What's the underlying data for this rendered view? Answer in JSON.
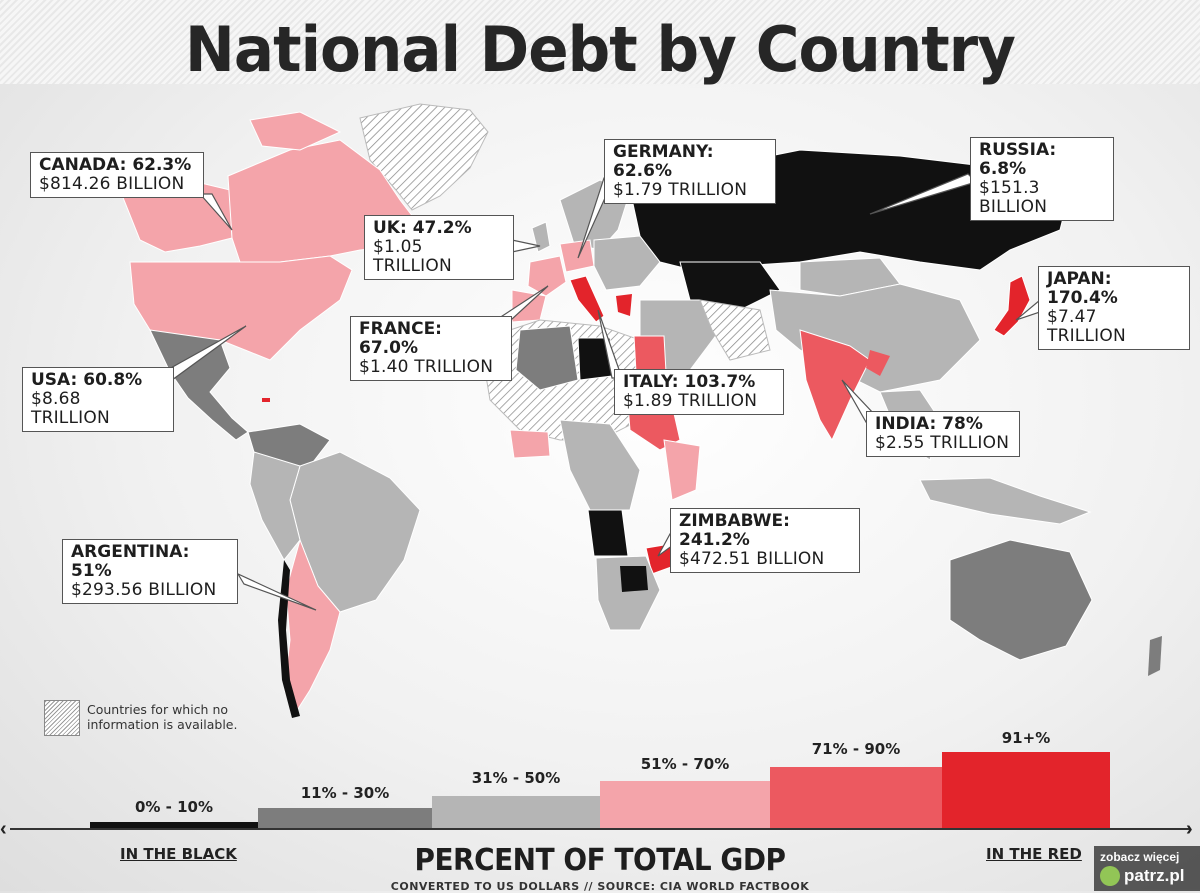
{
  "title": "National Debt by Country",
  "callouts": [
    {
      "id": "canada",
      "name": "CANADA: 62.3%",
      "amount": "$814.26 BILLION",
      "color": "#f4a4aa"
    },
    {
      "id": "uk",
      "name": "UK: 47.2%",
      "amount": "$1.05 TRILLION",
      "color": "#bdbdbd"
    },
    {
      "id": "germany",
      "name": "GERMANY: 62.6%",
      "amount": "$1.79 TRILLION",
      "color": "#f4a4aa"
    },
    {
      "id": "russia",
      "name": "RUSSIA: 6.8%",
      "amount": "$151.3 BILLION",
      "color": "#111111"
    },
    {
      "id": "japan",
      "name": "JAPAN: 170.4%",
      "amount": "$7.47 TRILLION",
      "color": "#e3242b"
    },
    {
      "id": "france",
      "name": "FRANCE: 67.0%",
      "amount": "$1.40 TRILLION",
      "color": "#f4a4aa"
    },
    {
      "id": "usa",
      "name": "USA: 60.8%",
      "amount": "$8.68 TRILLION",
      "color": "#f4a4aa"
    },
    {
      "id": "italy",
      "name": "ITALY: 103.7%",
      "amount": "$1.89 TRILLION",
      "color": "#e3242b"
    },
    {
      "id": "india",
      "name": "INDIA: 78%",
      "amount": "$2.55 TRILLION",
      "color": "#ec5960"
    },
    {
      "id": "zimbabwe",
      "name": "ZIMBABWE: 241.2%",
      "amount": "$472.51 BILLION",
      "color": "#e3242b"
    },
    {
      "id": "argentina",
      "name": "ARGENTINA: 51%",
      "amount": "$293.56 BILLION",
      "color": "#f4a4aa"
    }
  ],
  "no_info_note": "Countries for which no information is available.",
  "legend": {
    "bins": [
      {
        "label": "0% - 10%",
        "color": "#111111",
        "level": 1
      },
      {
        "label": "11% - 30%",
        "color": "#7d7d7d",
        "level": 2
      },
      {
        "label": "31% - 50%",
        "color": "#b5b5b5",
        "level": 3
      },
      {
        "label": "51% - 70%",
        "color": "#f4a4aa",
        "level": 4
      },
      {
        "label": "71% - 90%",
        "color": "#ec5960",
        "level": 5
      },
      {
        "label": "91+%",
        "color": "#e3242b",
        "level": 6
      }
    ],
    "left_label": "IN THE BLACK",
    "right_label": "IN THE RED",
    "axis_title": "PERCENT OF TOTAL GDP",
    "source": "CONVERTED TO US DOLLARS  //  SOURCE: CIA WORLD FACTBOOK"
  },
  "watermark": {
    "top": "zobacz więcej",
    "brand": "patrz.pl"
  }
}
